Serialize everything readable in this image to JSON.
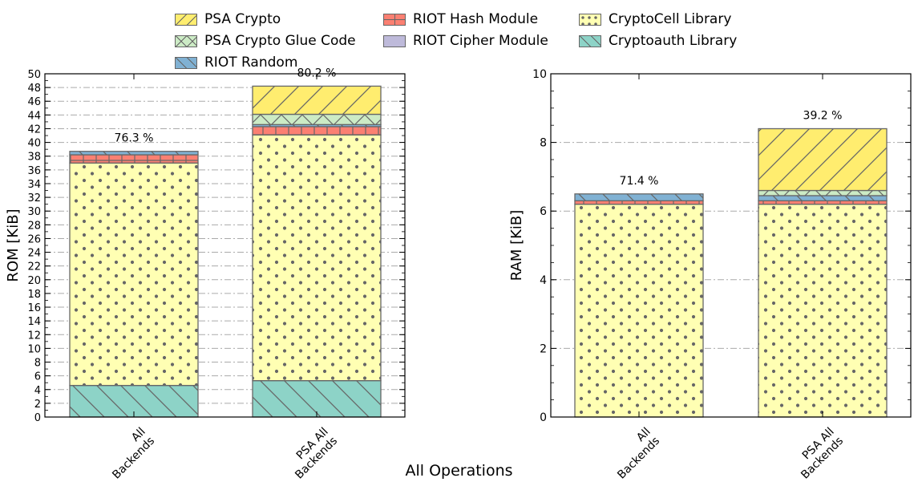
{
  "legend": {
    "items": [
      {
        "label": "PSA Crypto",
        "color": "#ffed6f",
        "pattern": "diag"
      },
      {
        "label": "PSA Crypto Glue Code",
        "color": "#ccebc5",
        "pattern": "cross"
      },
      {
        "label": "RIOT Random",
        "color": "#80b1d3",
        "pattern": "back"
      },
      {
        "label": "RIOT Hash Module",
        "color": "#fb8072",
        "pattern": "plus"
      },
      {
        "label": "RIOT Cipher Module",
        "color": "#bebada",
        "pattern": "none"
      },
      {
        "label": "CryptoCell Library",
        "color": "#ffffb3",
        "pattern": "dots"
      },
      {
        "label": "Cryptoauth Library",
        "color": "#8dd3c7",
        "pattern": "back"
      }
    ]
  },
  "xlabel": "All Operations",
  "chart_data": [
    {
      "type": "bar",
      "stacked": true,
      "ylabel": "ROM [KiB]",
      "ylim": [
        0,
        50
      ],
      "yticks": [
        0,
        2,
        4,
        6,
        8,
        10,
        12,
        14,
        16,
        18,
        20,
        22,
        24,
        26,
        28,
        30,
        32,
        34,
        36,
        38,
        40,
        42,
        44,
        46,
        48,
        50
      ],
      "grid": true,
      "categories": [
        "All\nBackends",
        "PSA All\nBackends"
      ],
      "series": [
        {
          "name": "Cryptoauth Library",
          "values": [
            4.6,
            5.3
          ]
        },
        {
          "name": "CryptoCell Library",
          "values": [
            32.4,
            35.8
          ]
        },
        {
          "name": "RIOT Cipher Module",
          "values": [
            0.0,
            0.0
          ]
        },
        {
          "name": "RIOT Hash Module",
          "values": [
            1.2,
            1.2
          ]
        },
        {
          "name": "RIOT Random",
          "values": [
            0.5,
            0.3
          ]
        },
        {
          "name": "PSA Crypto Glue Code",
          "values": [
            0.0,
            1.5
          ]
        },
        {
          "name": "PSA Crypto",
          "values": [
            0.0,
            4.1
          ]
        }
      ],
      "annotations": [
        "76.3 %",
        "80.2 %"
      ]
    },
    {
      "type": "bar",
      "stacked": true,
      "ylabel": "RAM [KiB]",
      "ylim": [
        0,
        10
      ],
      "yticks": [
        0,
        2,
        4,
        6,
        8,
        10
      ],
      "grid": true,
      "categories": [
        "All\nBackends",
        "PSA All\nBackends"
      ],
      "series": [
        {
          "name": "Cryptoauth Library",
          "values": [
            0.0,
            0.0
          ]
        },
        {
          "name": "CryptoCell Library",
          "values": [
            6.2,
            6.2
          ]
        },
        {
          "name": "RIOT Cipher Module",
          "values": [
            0.0,
            0.0
          ]
        },
        {
          "name": "RIOT Hash Module",
          "values": [
            0.1,
            0.1
          ]
        },
        {
          "name": "RIOT Random",
          "values": [
            0.2,
            0.15
          ]
        },
        {
          "name": "PSA Crypto Glue Code",
          "values": [
            0.0,
            0.15
          ]
        },
        {
          "name": "PSA Crypto",
          "values": [
            0.0,
            1.8
          ]
        }
      ],
      "annotations": [
        "71.4 %",
        "39.2 %"
      ]
    }
  ]
}
